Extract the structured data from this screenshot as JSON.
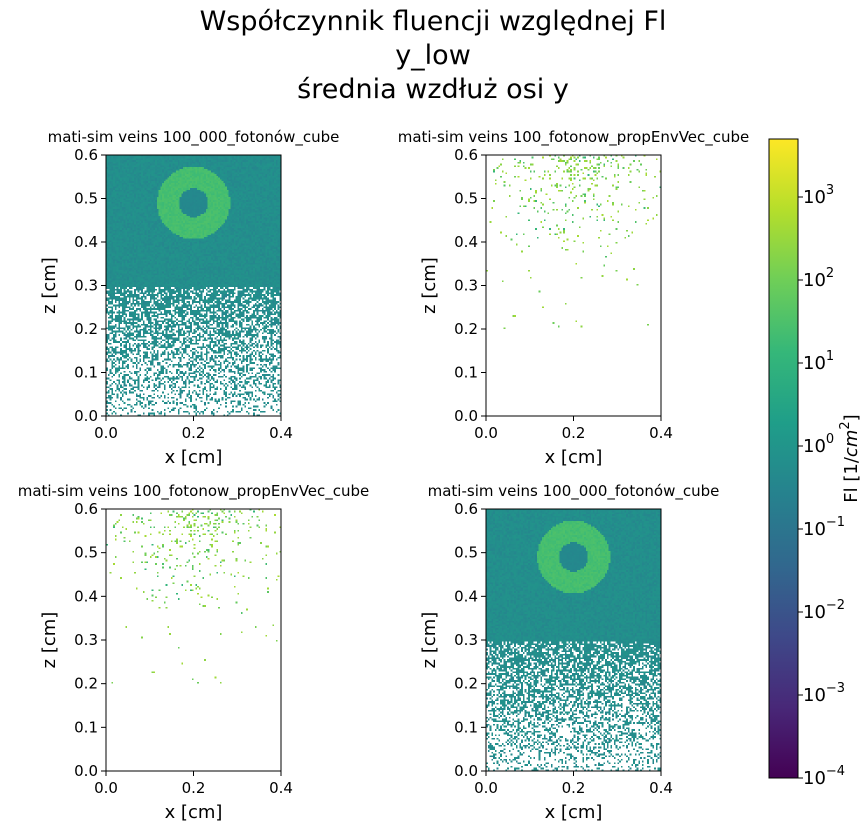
{
  "figure": {
    "title_lines": [
      "Współczynnik fluencji względnej Fl",
      "y_low",
      "średnia wzdłuż osi y"
    ]
  },
  "chart_data": [
    {
      "type": "heatmap",
      "title": "mati-sim veins 100_000_fotonów_cube",
      "xlabel": "x [cm]",
      "ylabel": "z [cm]",
      "xlim": [
        0.0,
        0.4
      ],
      "ylim": [
        0.0,
        0.6
      ],
      "x_ticks": [
        "0.0",
        "0.2",
        "0.4"
      ],
      "y_ticks": [
        "0.0",
        "0.1",
        "0.2",
        "0.3",
        "0.4",
        "0.5",
        "0.6"
      ],
      "pattern": "dense",
      "regions": {
        "sparse_below_z": 0.295,
        "background_value": 0.6,
        "ring": {
          "center_x": 0.2,
          "center_z": 0.49,
          "inner_radius": 0.033,
          "outer_radius": 0.083,
          "value": 25
        },
        "vessel_value": 0.4
      }
    },
    {
      "type": "heatmap",
      "title": "mati-sim veins 100_fotonow_propEnvVec_cube",
      "xlabel": "x [cm]",
      "ylabel": "z [cm]",
      "xlim": [
        0.0,
        0.4
      ],
      "ylim": [
        0.0,
        0.6
      ],
      "x_ticks": [
        "0.0",
        "0.2",
        "0.4"
      ],
      "y_ticks": [
        "0.0",
        "0.1",
        "0.2",
        "0.3",
        "0.4",
        "0.5",
        "0.6"
      ],
      "pattern": "sparse",
      "regions": {
        "dots_min_z": 0.2,
        "peak_x": 0.2,
        "value_range": [
          10,
          500
        ]
      }
    },
    {
      "type": "heatmap",
      "title": "mati-sim veins 100_fotonow_propEnvVec_cube",
      "xlabel": "x [cm]",
      "ylabel": "z [cm]",
      "xlim": [
        0.0,
        0.4
      ],
      "ylim": [
        0.0,
        0.6
      ],
      "x_ticks": [
        "0.0",
        "0.2",
        "0.4"
      ],
      "y_ticks": [
        "0.0",
        "0.1",
        "0.2",
        "0.3",
        "0.4",
        "0.5",
        "0.6"
      ],
      "pattern": "sparse",
      "regions": {
        "dots_min_z": 0.2,
        "peak_x": 0.2,
        "value_range": [
          10,
          500
        ]
      }
    },
    {
      "type": "heatmap",
      "title": "mati-sim veins 100_000_fotonów_cube",
      "xlabel": "x [cm]",
      "ylabel": "z [cm]",
      "xlim": [
        0.0,
        0.4
      ],
      "ylim": [
        0.0,
        0.6
      ],
      "x_ticks": [
        "0.0",
        "0.2",
        "0.4"
      ],
      "y_ticks": [
        "0.0",
        "0.1",
        "0.2",
        "0.3",
        "0.4",
        "0.5",
        "0.6"
      ],
      "pattern": "dense",
      "regions": {
        "sparse_below_z": 0.295,
        "background_value": 0.6,
        "ring": {
          "center_x": 0.2,
          "center_z": 0.49,
          "inner_radius": 0.033,
          "outer_radius": 0.083,
          "value": 25
        },
        "vessel_value": 0.4
      }
    }
  ],
  "colorbar": {
    "label": "Fl [1/cm²]",
    "label_base": "Fl [1/",
    "label_unit": "cm",
    "label_exp": "2",
    "label_close": "]",
    "scale": "log",
    "range": [
      0.0001,
      5000
    ],
    "colormap": "viridis",
    "ticks": [
      {
        "base": "10",
        "exp": "−4",
        "value": 0.0001
      },
      {
        "base": "10",
        "exp": "−3",
        "value": 0.001
      },
      {
        "base": "10",
        "exp": "−2",
        "value": 0.01
      },
      {
        "base": "10",
        "exp": "−1",
        "value": 0.1
      },
      {
        "base": "10",
        "exp": "0",
        "value": 1
      },
      {
        "base": "10",
        "exp": "1",
        "value": 10
      },
      {
        "base": "10",
        "exp": "2",
        "value": 100
      },
      {
        "base": "10",
        "exp": "3",
        "value": 1000
      }
    ]
  },
  "colors": {
    "viridis_stops": [
      "#440154",
      "#482878",
      "#3e4989",
      "#31688e",
      "#26828e",
      "#1f9e89",
      "#35b779",
      "#6ece58",
      "#b5de2b",
      "#fde725"
    ]
  }
}
